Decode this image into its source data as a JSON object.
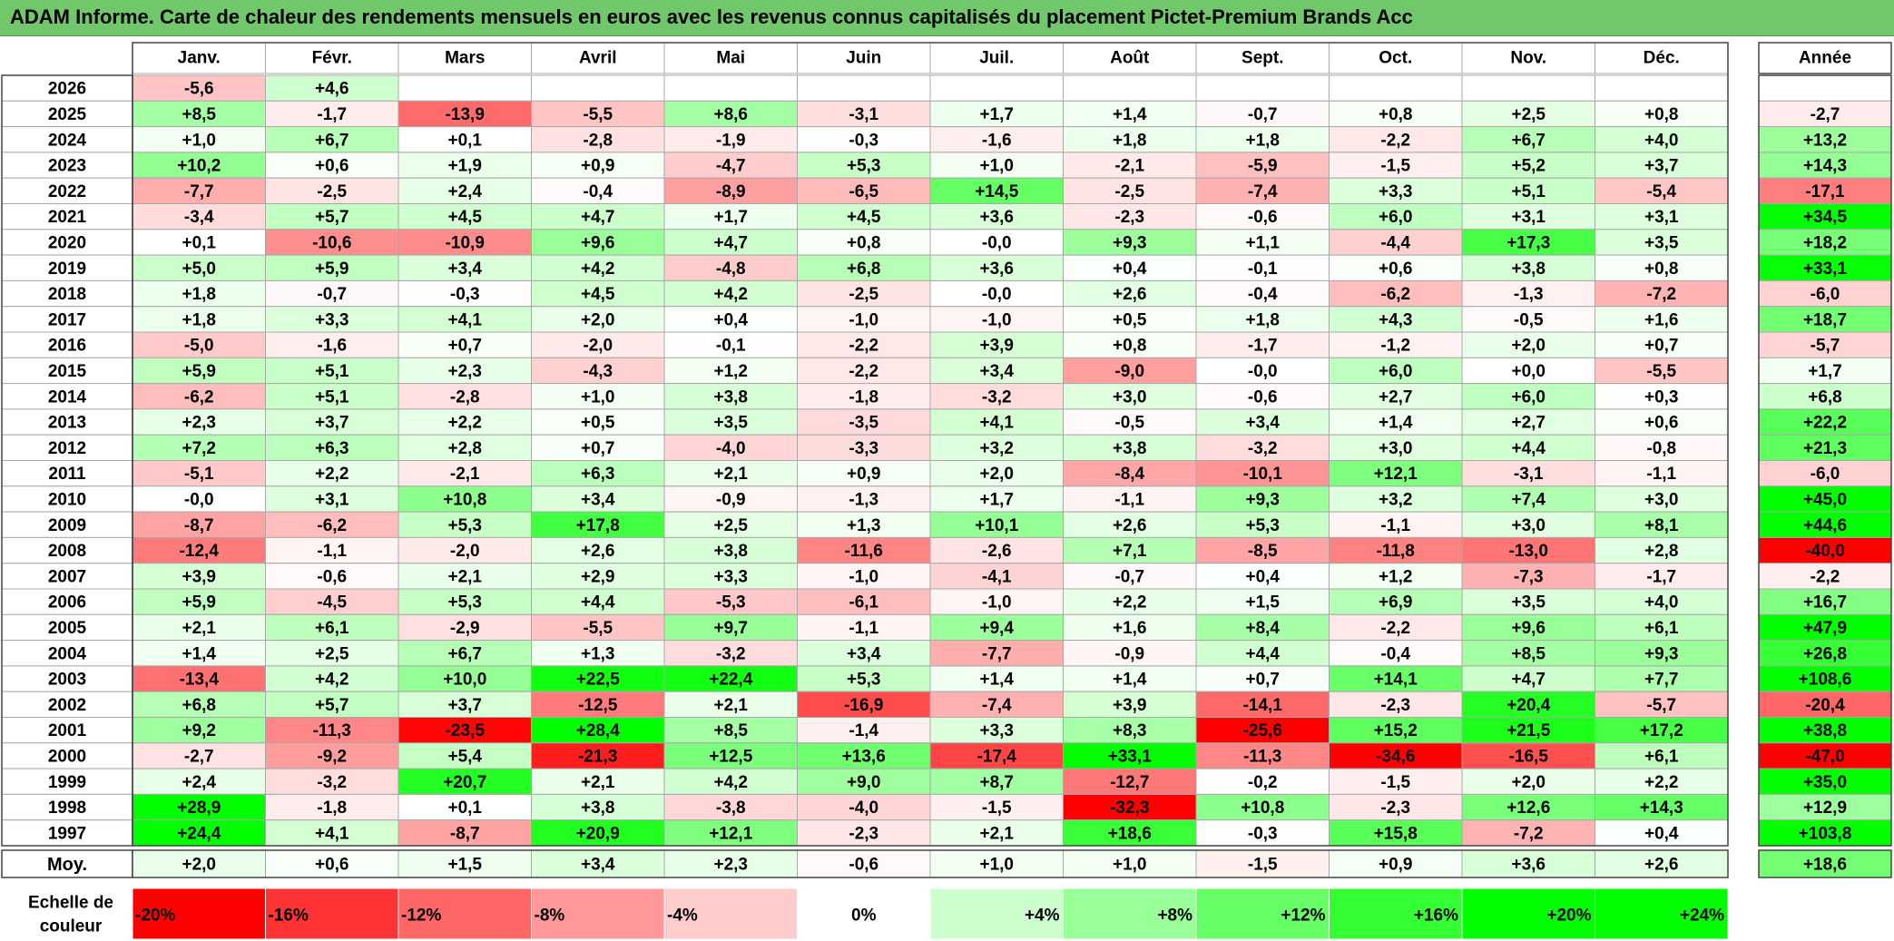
{
  "title": "ADAM Informe. Carte de chaleur des rendements mensuels en euros avec les revenus connus capitalisés du placement Pictet-Premium Brands Acc",
  "chart_data": {
    "type": "heatmap",
    "months": [
      "Janv.",
      "Févr.",
      "Mars",
      "Avril",
      "Mai",
      "Juin",
      "Juil.",
      "Août",
      "Sept.",
      "Oct.",
      "Nov.",
      "Déc."
    ],
    "annual_label": "Année",
    "average_label": "Moy.",
    "rows": [
      {
        "year": "2026",
        "months": [
          "-5,6",
          "+4,6",
          "",
          "",
          "",
          "",
          "",
          "",
          "",
          "",
          "",
          ""
        ],
        "annual": ""
      },
      {
        "year": "2025",
        "months": [
          "+8,5",
          "-1,7",
          "-13,9",
          "-5,5",
          "+8,6",
          "-3,1",
          "+1,7",
          "+1,4",
          "-0,7",
          "+0,8",
          "+2,5",
          "+0,8"
        ],
        "annual": "-2,7"
      },
      {
        "year": "2024",
        "months": [
          "+1,0",
          "+6,7",
          "+0,1",
          "-2,8",
          "-1,9",
          "-0,3",
          "-1,6",
          "+1,8",
          "+1,8",
          "-2,2",
          "+6,7",
          "+4,0"
        ],
        "annual": "+13,2"
      },
      {
        "year": "2023",
        "months": [
          "+10,2",
          "+0,6",
          "+1,9",
          "+0,9",
          "-4,7",
          "+5,3",
          "+1,0",
          "-2,1",
          "-5,9",
          "-1,5",
          "+5,2",
          "+3,7"
        ],
        "annual": "+14,3"
      },
      {
        "year": "2022",
        "months": [
          "-7,7",
          "-2,5",
          "+2,4",
          "-0,4",
          "-8,9",
          "-6,5",
          "+14,5",
          "-2,5",
          "-7,4",
          "+3,3",
          "+5,1",
          "-5,4"
        ],
        "annual": "-17,1"
      },
      {
        "year": "2021",
        "months": [
          "-3,4",
          "+5,7",
          "+4,5",
          "+4,7",
          "+1,7",
          "+4,5",
          "+3,6",
          "-2,3",
          "-0,6",
          "+6,0",
          "+3,1",
          "+3,1"
        ],
        "annual": "+34,5"
      },
      {
        "year": "2020",
        "months": [
          "+0,1",
          "-10,6",
          "-10,9",
          "+9,6",
          "+4,7",
          "+0,8",
          "-0,0",
          "+9,3",
          "+1,1",
          "-4,4",
          "+17,3",
          "+3,5"
        ],
        "annual": "+18,2"
      },
      {
        "year": "2019",
        "months": [
          "+5,0",
          "+5,9",
          "+3,4",
          "+4,2",
          "-4,8",
          "+6,8",
          "+3,6",
          "+0,4",
          "-0,1",
          "+0,6",
          "+3,8",
          "+0,8"
        ],
        "annual": "+33,1"
      },
      {
        "year": "2018",
        "months": [
          "+1,8",
          "-0,7",
          "-0,3",
          "+4,5",
          "+4,2",
          "-2,5",
          "-0,0",
          "+2,6",
          "-0,4",
          "-6,2",
          "-1,3",
          "-7,2"
        ],
        "annual": "-6,0"
      },
      {
        "year": "2017",
        "months": [
          "+1,8",
          "+3,3",
          "+4,1",
          "+2,0",
          "+0,4",
          "-1,0",
          "-1,0",
          "+0,5",
          "+1,8",
          "+4,3",
          "-0,5",
          "+1,6"
        ],
        "annual": "+18,7"
      },
      {
        "year": "2016",
        "months": [
          "-5,0",
          "-1,6",
          "+0,7",
          "-2,0",
          "-0,1",
          "-2,2",
          "+3,9",
          "+0,8",
          "-1,7",
          "-1,2",
          "+2,0",
          "+0,7"
        ],
        "annual": "-5,7"
      },
      {
        "year": "2015",
        "months": [
          "+5,9",
          "+5,1",
          "+2,3",
          "-4,3",
          "+1,2",
          "-2,2",
          "+3,4",
          "-9,0",
          "-0,0",
          "+6,0",
          "+0,0",
          "-5,5"
        ],
        "annual": "+1,7"
      },
      {
        "year": "2014",
        "months": [
          "-6,2",
          "+5,1",
          "-2,8",
          "+1,0",
          "+3,8",
          "-1,8",
          "-3,2",
          "+3,0",
          "-0,6",
          "+2,7",
          "+6,0",
          "+0,3"
        ],
        "annual": "+6,8"
      },
      {
        "year": "2013",
        "months": [
          "+2,3",
          "+3,7",
          "+2,2",
          "+0,5",
          "+3,5",
          "-3,5",
          "+4,1",
          "-0,5",
          "+3,4",
          "+1,4",
          "+2,7",
          "+0,6"
        ],
        "annual": "+22,2"
      },
      {
        "year": "2012",
        "months": [
          "+7,2",
          "+6,3",
          "+2,8",
          "+0,7",
          "-4,0",
          "-3,3",
          "+3,2",
          "+3,8",
          "-3,2",
          "+3,0",
          "+4,4",
          "-0,8"
        ],
        "annual": "+21,3"
      },
      {
        "year": "2011",
        "months": [
          "-5,1",
          "+2,2",
          "-2,1",
          "+6,3",
          "+2,1",
          "+0,9",
          "+2,0",
          "-8,4",
          "-10,1",
          "+12,1",
          "-3,1",
          "-1,1"
        ],
        "annual": "-6,0"
      },
      {
        "year": "2010",
        "months": [
          "-0,0",
          "+3,1",
          "+10,8",
          "+3,4",
          "-0,9",
          "-1,3",
          "+1,7",
          "-1,1",
          "+9,3",
          "+3,2",
          "+7,4",
          "+3,0"
        ],
        "annual": "+45,0"
      },
      {
        "year": "2009",
        "months": [
          "-8,7",
          "-6,2",
          "+5,3",
          "+17,8",
          "+2,5",
          "+1,3",
          "+10,1",
          "+2,6",
          "+5,3",
          "-1,1",
          "+3,0",
          "+8,1"
        ],
        "annual": "+44,6"
      },
      {
        "year": "2008",
        "months": [
          "-12,4",
          "-1,1",
          "-2,0",
          "+2,6",
          "+3,8",
          "-11,6",
          "-2,6",
          "+7,1",
          "-8,5",
          "-11,8",
          "-13,0",
          "+2,8"
        ],
        "annual": "-40,0"
      },
      {
        "year": "2007",
        "months": [
          "+3,9",
          "-0,6",
          "+2,1",
          "+2,9",
          "+3,3",
          "-1,0",
          "-4,1",
          "-0,7",
          "+0,4",
          "+1,2",
          "-7,3",
          "-1,7"
        ],
        "annual": "-2,2"
      },
      {
        "year": "2006",
        "months": [
          "+5,9",
          "-4,5",
          "+5,3",
          "+4,4",
          "-5,3",
          "-6,1",
          "-1,0",
          "+2,2",
          "+1,5",
          "+6,9",
          "+3,5",
          "+4,0"
        ],
        "annual": "+16,7"
      },
      {
        "year": "2005",
        "months": [
          "+2,1",
          "+6,1",
          "-2,9",
          "-5,5",
          "+9,7",
          "-1,1",
          "+9,4",
          "+1,6",
          "+8,4",
          "-2,2",
          "+9,6",
          "+6,1"
        ],
        "annual": "+47,9"
      },
      {
        "year": "2004",
        "months": [
          "+1,4",
          "+2,5",
          "+6,7",
          "+1,3",
          "-3,2",
          "+3,4",
          "-7,7",
          "-0,9",
          "+4,4",
          "-0,4",
          "+8,5",
          "+9,3"
        ],
        "annual": "+26,8"
      },
      {
        "year": "2003",
        "months": [
          "-13,4",
          "+4,2",
          "+10,0",
          "+22,5",
          "+22,4",
          "+5,3",
          "+1,4",
          "+1,4",
          "+0,7",
          "+14,1",
          "+4,7",
          "+7,7"
        ],
        "annual": "+108,6"
      },
      {
        "year": "2002",
        "months": [
          "+6,8",
          "+5,7",
          "+3,7",
          "-12,5",
          "+2,1",
          "-16,9",
          "-7,4",
          "+3,9",
          "-14,1",
          "-2,3",
          "+20,4",
          "-5,7"
        ],
        "annual": "-20,4"
      },
      {
        "year": "2001",
        "months": [
          "+9,2",
          "-11,3",
          "-23,5",
          "+28,4",
          "+8,5",
          "-1,4",
          "+3,3",
          "+8,3",
          "-25,6",
          "+15,2",
          "+21,5",
          "+17,2"
        ],
        "annual": "+38,8"
      },
      {
        "year": "2000",
        "months": [
          "-2,7",
          "-9,2",
          "+5,4",
          "-21,3",
          "+12,5",
          "+13,6",
          "-17,4",
          "+33,1",
          "-11,3",
          "-34,6",
          "-16,5",
          "+6,1"
        ],
        "annual": "-47,0"
      },
      {
        "year": "1999",
        "months": [
          "+2,4",
          "-3,2",
          "+20,7",
          "+2,1",
          "+4,2",
          "+9,0",
          "+8,7",
          "-12,7",
          "-0,2",
          "-1,5",
          "+2,0",
          "+2,2"
        ],
        "annual": "+35,0"
      },
      {
        "year": "1998",
        "months": [
          "+28,9",
          "-1,8",
          "+0,1",
          "+3,8",
          "-3,8",
          "-4,0",
          "-1,5",
          "-32,3",
          "+10,8",
          "-2,3",
          "+12,6",
          "+14,3"
        ],
        "annual": "+12,9"
      },
      {
        "year": "1997",
        "months": [
          "+24,4",
          "+4,1",
          "-8,7",
          "+20,9",
          "+12,1",
          "-2,3",
          "+2,1",
          "+18,6",
          "-0,3",
          "+15,8",
          "-7,2",
          "+0,4"
        ],
        "annual": "+103,8"
      }
    ],
    "averages": {
      "months": [
        "+2,0",
        "+0,6",
        "+1,5",
        "+3,4",
        "+2,3",
        "-0,6",
        "+1,0",
        "+1,0",
        "-1,5",
        "+0,9",
        "+3,6",
        "+2,6"
      ],
      "annual": "+18,6"
    },
    "scale": {
      "label_line1": "Echelle de",
      "label_line2": "couleur",
      "stops": [
        {
          "label": "-20%",
          "value": -20,
          "color": "#ff0000"
        },
        {
          "label": "-16%",
          "value": -16,
          "color": "#ff3333"
        },
        {
          "label": "-12%",
          "value": -12,
          "color": "#ff6666"
        },
        {
          "label": "-8%",
          "value": -8,
          "color": "#ff9999"
        },
        {
          "label": "-4%",
          "value": -4,
          "color": "#ffcccc"
        },
        {
          "label": "0%",
          "value": 0,
          "color": "#ffffff"
        },
        {
          "label": "+4%",
          "value": 4,
          "color": "#ccffcc"
        },
        {
          "label": "+8%",
          "value": 8,
          "color": "#99ff99"
        },
        {
          "label": "+12%",
          "value": 12,
          "color": "#66ff66"
        },
        {
          "label": "+16%",
          "value": 16,
          "color": "#33ff33"
        },
        {
          "label": "+20%",
          "value": 20,
          "color": "#00ff00"
        },
        {
          "label": "+24%",
          "value": 24,
          "color": "#00ff00"
        }
      ]
    },
    "colors": {
      "title_bar": "#70c86a",
      "negative_max": "#ff0000",
      "positive_max": "#00ff00",
      "neutral": "#ffffff"
    }
  }
}
